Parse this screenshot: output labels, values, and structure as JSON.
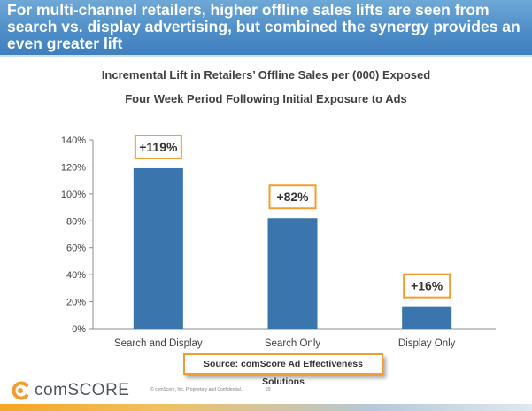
{
  "header": {
    "headline": "For multi-channel retailers, higher offline sales lifts are seen from search vs. display advertising, but combined the synergy provides an even greater lift"
  },
  "chart_data": {
    "type": "bar",
    "title": "Incremental Lift in Retailers’ Offline Sales per (000) Exposed",
    "subtitle": "Four Week Period Following Initial Exposure to Ads",
    "categories": [
      "Search and Display",
      "Search Only",
      "Display Only"
    ],
    "values": [
      119,
      82,
      16
    ],
    "data_labels": [
      "+119%",
      "+82%",
      "+16%"
    ],
    "ylim": [
      0,
      140
    ],
    "yticks": [
      0,
      20,
      40,
      60,
      80,
      100,
      120,
      140
    ],
    "ytick_labels": [
      "0%",
      "20%",
      "40%",
      "60%",
      "80%",
      "100%",
      "120%",
      "140%"
    ],
    "xlabel": "",
    "ylabel": "",
    "grid": false,
    "bar_color": "#3a76ad",
    "label_box_color": "#f39c32"
  },
  "source": "Source: comScore Ad Effectiveness Solutions",
  "footer": {
    "brand": "comSCORE",
    "copyright": "© comScore, Inc.  Proprietary and Confidential.",
    "page_number": "29"
  },
  "colors": {
    "banner": "#4f8ec8",
    "accent_orange": "#f39c32"
  }
}
